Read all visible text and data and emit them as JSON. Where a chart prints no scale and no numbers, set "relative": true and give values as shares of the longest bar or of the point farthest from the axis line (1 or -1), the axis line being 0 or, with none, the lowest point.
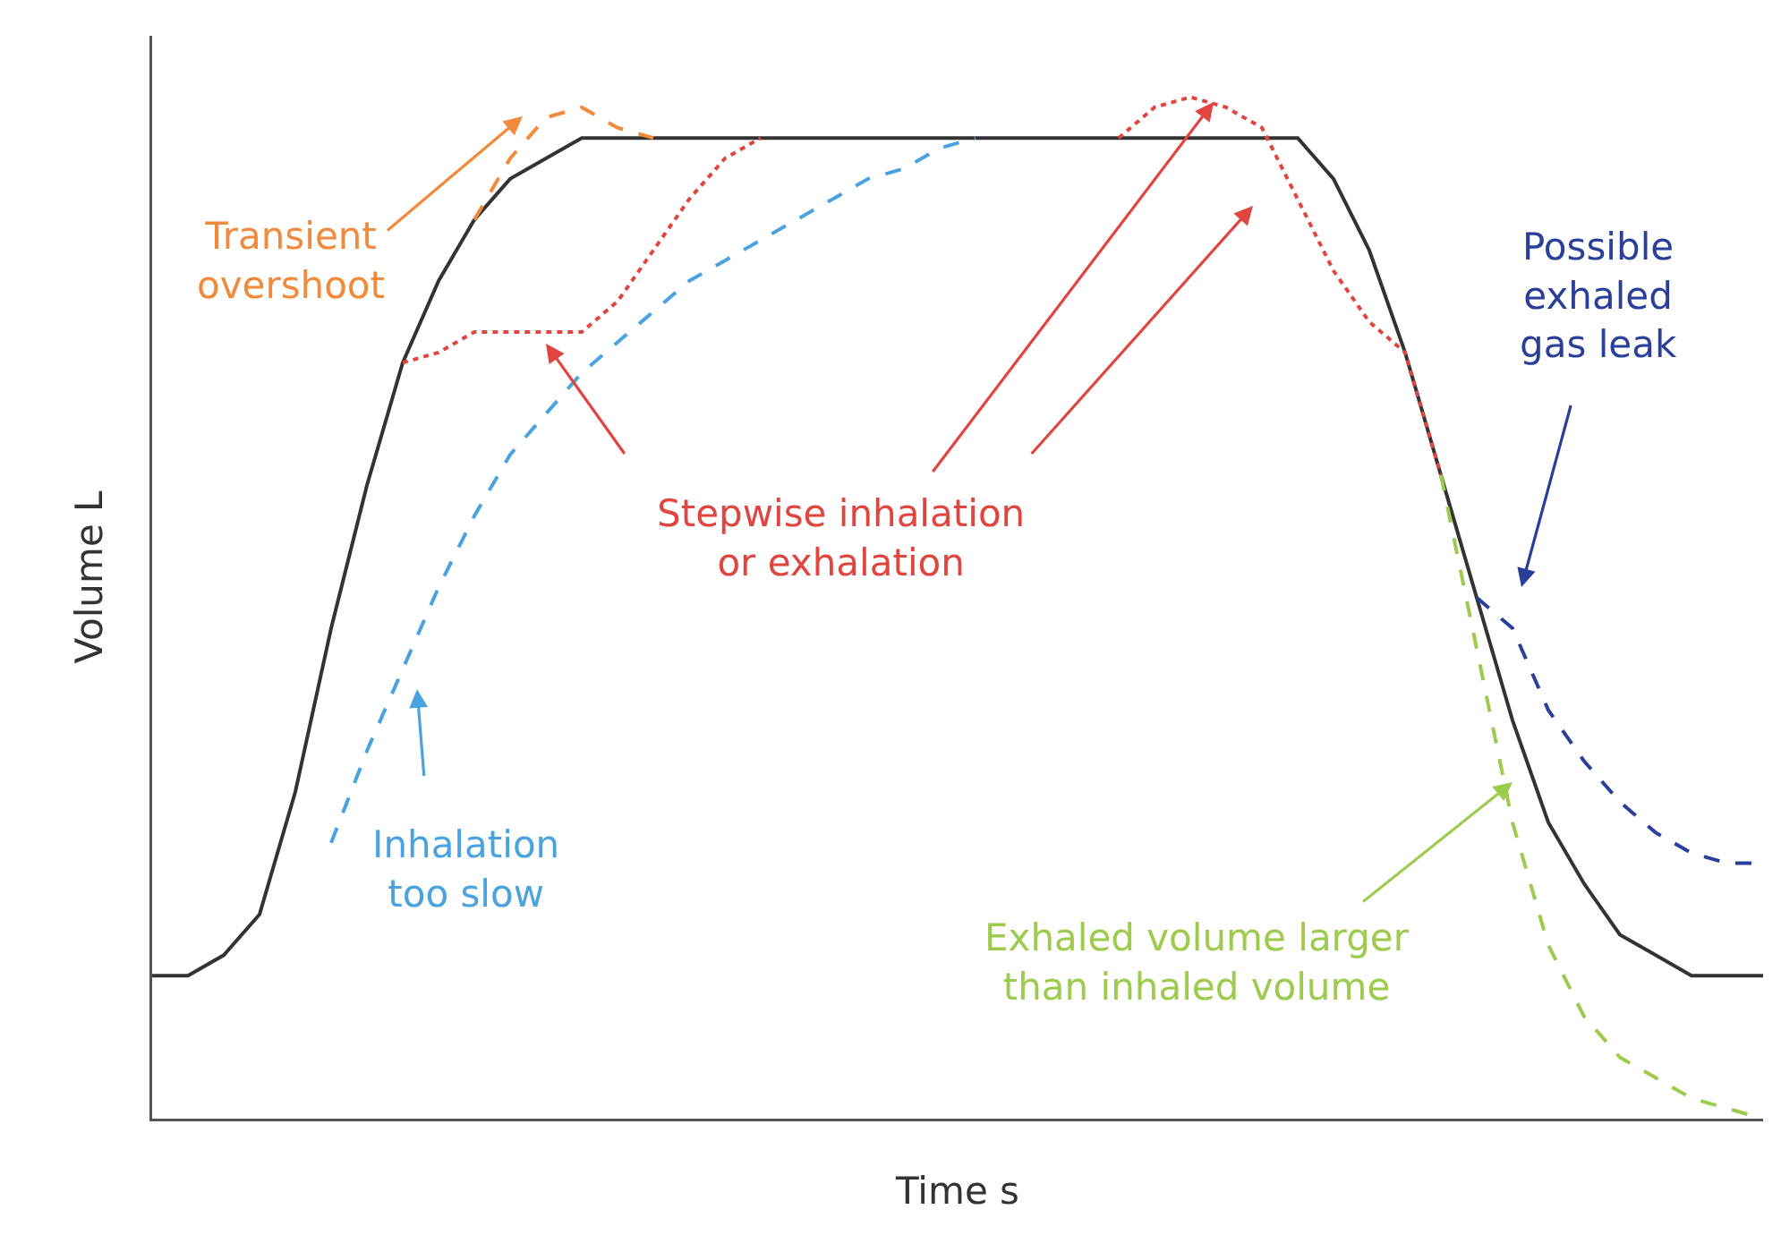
{
  "chart_data": {
    "type": "line",
    "relative": true,
    "xlabel": "Time s",
    "ylabel": "Volume L",
    "tick_labels": false,
    "categories": [
      null,
      null,
      null,
      null,
      null,
      null,
      null,
      null,
      null,
      null,
      null,
      null,
      null,
      null,
      null,
      null,
      null,
      null,
      null,
      null,
      null,
      null,
      null,
      null,
      null,
      null,
      null,
      null,
      null,
      null,
      null,
      null,
      null,
      null,
      null,
      null,
      null,
      null,
      null,
      null,
      null,
      null,
      null,
      null,
      null,
      null
    ],
    "series": [
      {
        "color": "#333333",
        "line_style": "solid",
        "values": [
          0.14,
          0.14,
          0.16,
          0.2,
          0.32,
          0.48,
          0.62,
          0.74,
          0.82,
          0.88,
          0.92,
          0.94,
          0.96,
          0.96,
          0.96,
          0.96,
          0.96,
          0.96,
          0.96,
          0.96,
          0.96,
          0.96,
          0.96,
          0.96,
          0.96,
          0.96,
          0.96,
          0.96,
          0.96,
          0.96,
          0.96,
          0.96,
          0.96,
          0.92,
          0.85,
          0.75,
          0.63,
          0.51,
          0.39,
          0.29,
          0.23,
          0.18,
          0.16,
          0.14,
          0.14,
          0.14
        ]
      },
      {
        "color": "#f08a3c",
        "line_style": "dashed",
        "values": [
          null,
          null,
          null,
          null,
          null,
          null,
          null,
          null,
          null,
          0.88,
          0.94,
          0.98,
          0.99,
          0.97,
          0.96,
          null,
          null,
          null,
          null,
          null,
          null,
          null,
          null,
          null,
          null,
          null,
          null,
          null,
          null,
          null,
          null,
          null,
          null,
          null,
          null,
          null,
          null,
          null,
          null,
          null,
          null,
          null,
          null,
          null,
          null,
          null
        ]
      },
      {
        "color": "#e0453f",
        "line_style": "dotted",
        "values": [
          null,
          null,
          null,
          null,
          null,
          null,
          null,
          0.74,
          0.75,
          0.77,
          0.77,
          0.77,
          0.77,
          0.8,
          0.85,
          0.9,
          0.94,
          0.96,
          null,
          null,
          null,
          null,
          null,
          null,
          null,
          null,
          null,
          0.96,
          0.99,
          1,
          0.99,
          0.97,
          0.9,
          0.83,
          0.78,
          0.75,
          0.63,
          null,
          null,
          null,
          null,
          null,
          null,
          null,
          null,
          null
        ]
      },
      {
        "color": "#4aa3df",
        "line_style": "dashed",
        "values": [
          null,
          null,
          null,
          null,
          null,
          0.27,
          0.36,
          0.44,
          0.52,
          0.59,
          0.65,
          0.69,
          0.73,
          0.76,
          0.79,
          0.82,
          0.84,
          0.86,
          0.88,
          0.9,
          0.92,
          0.93,
          0.95,
          0.96,
          null,
          null,
          null,
          null,
          null,
          null,
          null,
          null,
          null,
          null,
          null,
          null,
          null,
          null,
          null,
          null,
          null,
          null,
          null,
          null,
          null,
          null
        ]
      },
      {
        "color": "#2a3f9a",
        "line_style": "dashed",
        "values": [
          null,
          null,
          null,
          null,
          null,
          null,
          null,
          null,
          null,
          null,
          null,
          null,
          null,
          null,
          null,
          null,
          null,
          null,
          null,
          null,
          null,
          null,
          null,
          null,
          null,
          null,
          null,
          null,
          null,
          null,
          null,
          null,
          null,
          null,
          null,
          null,
          null,
          0.51,
          0.48,
          0.4,
          0.35,
          0.31,
          0.28,
          0.26,
          0.25,
          0.25
        ]
      },
      {
        "color": "#9ccb4e",
        "line_style": "dashed",
        "values": [
          null,
          null,
          null,
          null,
          null,
          null,
          null,
          null,
          null,
          null,
          null,
          null,
          null,
          null,
          null,
          null,
          null,
          null,
          null,
          null,
          null,
          null,
          null,
          null,
          null,
          null,
          null,
          null,
          null,
          null,
          null,
          null,
          null,
          null,
          null,
          null,
          0.63,
          0.46,
          0.29,
          0.17,
          0.1,
          0.06,
          0.04,
          0.02,
          0.01,
          0
        ]
      }
    ],
    "annotations": [
      "Transient\novershoot",
      "Stepwise inhalation\nor exhalation",
      "Inhalation\ntoo slow",
      "Possible\nexhaled\ngas leak",
      "Exhaled volume larger\nthan inhaled volume"
    ]
  }
}
